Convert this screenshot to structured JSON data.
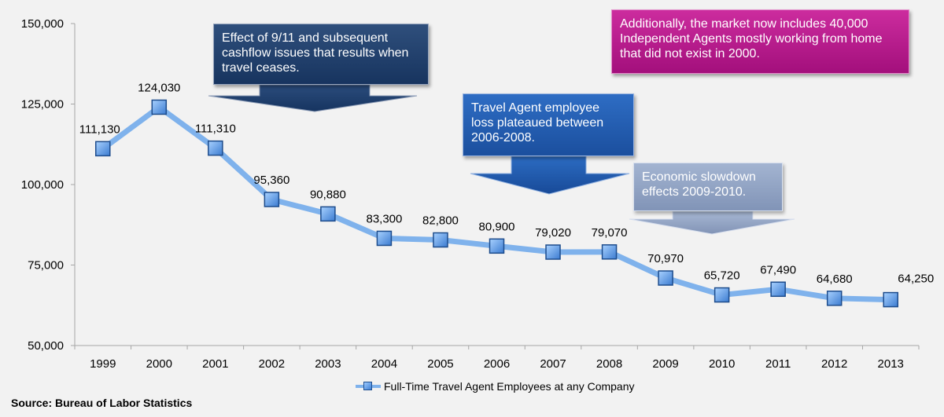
{
  "chart_data": {
    "type": "line",
    "categories": [
      "1999",
      "2000",
      "2001",
      "2002",
      "2003",
      "2004",
      "2005",
      "2006",
      "2007",
      "2008",
      "2009",
      "2010",
      "2011",
      "2012",
      "2013"
    ],
    "series": [
      {
        "name": "Full-Time Travel Agent Employees at any Company",
        "values": [
          111130,
          124030,
          111310,
          95360,
          90880,
          83300,
          82800,
          80900,
          79020,
          79070,
          70970,
          65720,
          67490,
          64680,
          64250
        ],
        "color": "#7fb2ec",
        "marker_color": "#4a8fe0"
      }
    ],
    "data_labels": [
      "111,130",
      "124,030",
      "111,310",
      "95,360",
      "90,880",
      "83,300",
      "82,800",
      "80,900",
      "79,020",
      "79,070",
      "70,970",
      "65,720",
      "67,490",
      "64,680",
      "64,250"
    ],
    "ylim": [
      50000,
      150000
    ],
    "yticks": [
      50000,
      75000,
      100000,
      125000,
      150000
    ],
    "ytick_labels": [
      "50,000",
      "75,000",
      "100,000",
      "125,000",
      "150,000"
    ],
    "grid": false,
    "legend_position": "bottom"
  },
  "annotations": {
    "effect_911": [
      "Effect of  9/11 and subsequent",
      "cashflow issues that results when",
      "travel ceases."
    ],
    "plateau": [
      "Travel Agent employee",
      "loss plateaued between",
      "2006-2008."
    ],
    "slowdown": [
      "Economic slowdown",
      "effects 2009-2010."
    ],
    "independent_agents": [
      "Additionally, the market now includes 40,000",
      "Independent Agents mostly working from home",
      "that did not exist in 2000."
    ]
  },
  "legend": {
    "label": "Full-Time Travel Agent Employees at any Company"
  },
  "source": "Source: Bureau of Labor Statistics"
}
